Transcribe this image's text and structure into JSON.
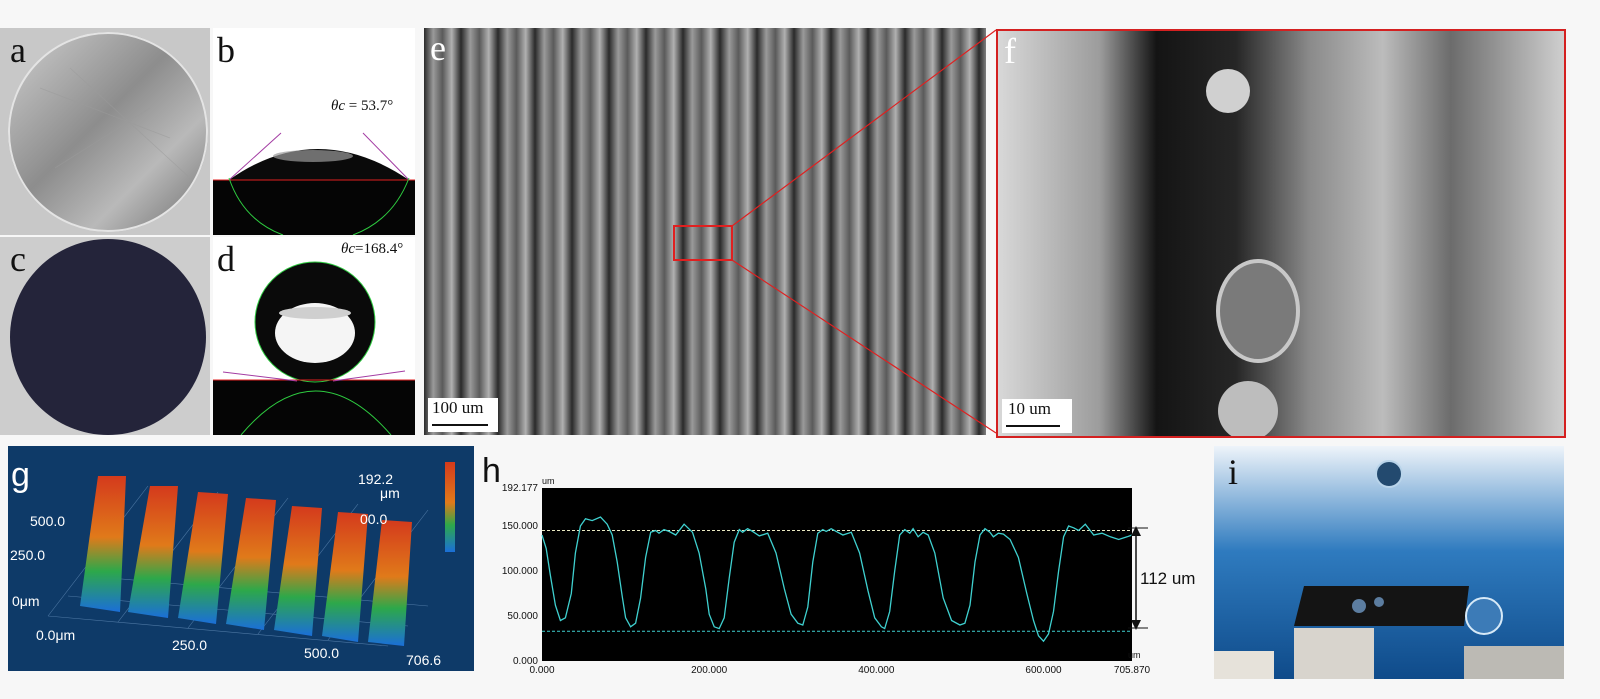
{
  "panels": {
    "a": {
      "letter": "a"
    },
    "b": {
      "letter": "b",
      "angle_symbol": "θc",
      "angle_text": " = 53.7°",
      "contact_angle_deg": 53.7
    },
    "c": {
      "letter": "c"
    },
    "d": {
      "letter": "d",
      "angle_symbol": "θc",
      "angle_text": "=168.4°",
      "contact_angle_deg": 168.4
    },
    "e": {
      "letter": "e",
      "scale_label": "100 um"
    },
    "f": {
      "letter": "f",
      "scale_label": "10 um"
    },
    "g": {
      "letter": "g",
      "z_max_label": "192.2",
      "z_unit_label": "μm",
      "z_zero_label": "00.0",
      "y_labels": [
        "500.0",
        "250.0",
        "0μm"
      ],
      "x_labels": [
        "0.0μm",
        "250.0",
        "500.0",
        "706.6"
      ],
      "colors": {
        "background": "#0e3a68",
        "ridge_high": "#d43a1c",
        "ridge_low": "#1b6fd8"
      }
    },
    "h": {
      "letter": "h",
      "dimension_label": "112 um"
    },
    "i": {
      "letter": "i"
    }
  },
  "chart_data": {
    "type": "line",
    "title": "",
    "xlabel": "",
    "ylabel": "",
    "y_unit": "um",
    "x_unit": "um",
    "xlim": [
      0,
      705.87
    ],
    "ylim": [
      0,
      192.177
    ],
    "x_ticks": [
      "0.000",
      "200.000",
      "400.000",
      "600.000",
      "705.870"
    ],
    "y_ticks": [
      "0.000",
      "50.000",
      "100.000",
      "150.000",
      "192.177"
    ],
    "reference_lines": [
      145,
      33
    ],
    "annotation": "112 um",
    "grid": false,
    "series": [
      {
        "color": "#3fd0cf",
        "x": [
          0,
          5,
          10,
          16,
          22,
          28,
          35,
          40,
          46,
          52,
          60,
          70,
          78,
          84,
          90,
          96,
          100,
          106,
          112,
          118,
          124,
          130,
          136,
          140,
          146,
          152,
          160,
          170,
          180,
          188,
          196,
          200,
          206,
          212,
          218,
          224,
          230,
          236,
          240,
          246,
          252,
          260,
          270,
          280,
          290,
          298,
          306,
          312,
          318,
          324,
          330,
          336,
          340,
          346,
          352,
          360,
          370,
          380,
          390,
          398,
          406,
          410,
          416,
          422,
          428,
          434,
          440,
          444,
          450,
          456,
          462,
          470,
          480,
          490,
          500,
          506,
          512,
          518,
          524,
          530,
          536,
          540,
          546,
          552,
          560,
          570,
          580,
          588,
          594,
          600,
          606,
          612,
          618,
          624,
          630,
          636,
          642,
          650,
          660,
          670,
          680,
          690,
          700,
          705.87
        ],
        "y": [
          140,
          125,
          95,
          62,
          45,
          48,
          75,
          120,
          150,
          158,
          156,
          160,
          152,
          140,
          110,
          72,
          48,
          38,
          42,
          70,
          115,
          143,
          145,
          142,
          146,
          144,
          140,
          152,
          143,
          120,
          80,
          52,
          38,
          36,
          48,
          92,
          132,
          146,
          143,
          147,
          144,
          139,
          142,
          120,
          80,
          52,
          42,
          40,
          60,
          110,
          142,
          146,
          144,
          147,
          144,
          140,
          143,
          120,
          78,
          48,
          38,
          36,
          55,
          100,
          140,
          146,
          142,
          147,
          138,
          143,
          140,
          120,
          70,
          45,
          40,
          42,
          62,
          110,
          140,
          147,
          143,
          138,
          142,
          141,
          135,
          115,
          75,
          45,
          28,
          22,
          30,
          55,
          100,
          138,
          150,
          148,
          145,
          152,
          140,
          142,
          138,
          135,
          138,
          140
        ]
      }
    ]
  }
}
